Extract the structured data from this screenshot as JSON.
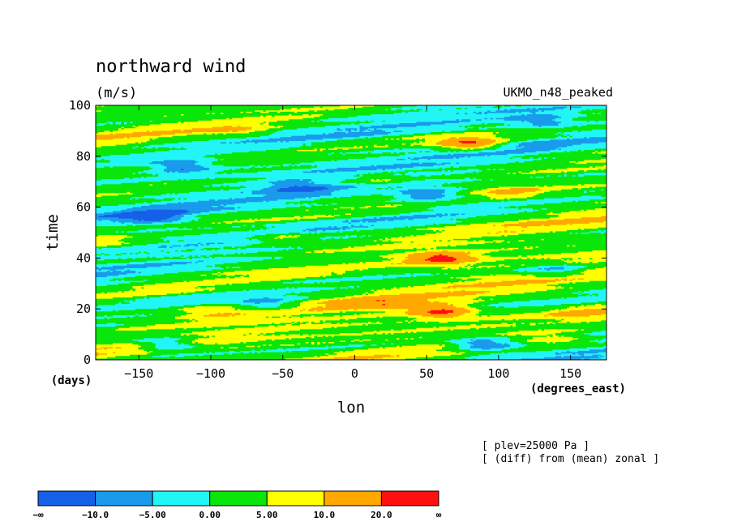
{
  "chart_data": {
    "type": "heatmap",
    "title": "northward wind",
    "units": "(m/s)",
    "source_label": "UKMO_n48_peaked",
    "xlabel": "lon",
    "xunits": "(degrees_east)",
    "ylabel": "time",
    "yunits": "(days)",
    "xlim": [
      -180,
      175
    ],
    "ylim": [
      0,
      100
    ],
    "xticks": [
      -150,
      -100,
      -50,
      0,
      50,
      100,
      150
    ],
    "yticks": [
      0,
      20,
      40,
      60,
      80,
      100
    ],
    "xtick_labels": [
      "−150",
      "−100",
      "−50",
      "0",
      "50",
      "100",
      "150"
    ],
    "ytick_labels": [
      "0",
      "20",
      "40",
      "60",
      "80",
      "100"
    ],
    "annotations": [
      "[ plev=25000 Pa ]",
      "[ (diff) from (mean) zonal ]"
    ],
    "colorbar": {
      "colors": [
        "#1560e8",
        "#1a9aeb",
        "#22f5f5",
        "#0ae60a",
        "#ffff00",
        "#ffa800",
        "#ff1010"
      ],
      "labels": [
        "−∞",
        "−10.0",
        "−5.00",
        "0.00",
        "5.00",
        "10.0",
        "20.0",
        "∞"
      ]
    },
    "features": [
      {
        "x": 60,
        "y": 19,
        "value": 22
      },
      {
        "x": 20,
        "y": 22,
        "value": 12
      },
      {
        "x": 80,
        "y": 85,
        "value": 21
      },
      {
        "x": 60,
        "y": 40,
        "value": 21
      },
      {
        "x": -100,
        "y": 19,
        "value": 8
      },
      {
        "x": -50,
        "y": 48,
        "value": 9
      },
      {
        "x": 110,
        "y": 66,
        "value": 10
      },
      {
        "x": -80,
        "y": 90,
        "value": 8
      },
      {
        "x": -175,
        "y": 47,
        "value": 9
      },
      {
        "x": 20,
        "y": 70,
        "value": 8
      },
      {
        "x": 140,
        "y": 8,
        "value": 8
      },
      {
        "x": 160,
        "y": 18,
        "value": 9
      },
      {
        "x": -130,
        "y": 6,
        "value": -11
      },
      {
        "x": 90,
        "y": 6,
        "value": -12
      },
      {
        "x": 50,
        "y": 65,
        "value": -11
      },
      {
        "x": -140,
        "y": 56,
        "value": -11
      },
      {
        "x": -120,
        "y": 76,
        "value": -11
      },
      {
        "x": -40,
        "y": 68,
        "value": -7
      },
      {
        "x": 130,
        "y": 94,
        "value": -8
      },
      {
        "x": -60,
        "y": 22,
        "value": -7
      },
      {
        "x": 140,
        "y": 35,
        "value": -7
      }
    ]
  }
}
